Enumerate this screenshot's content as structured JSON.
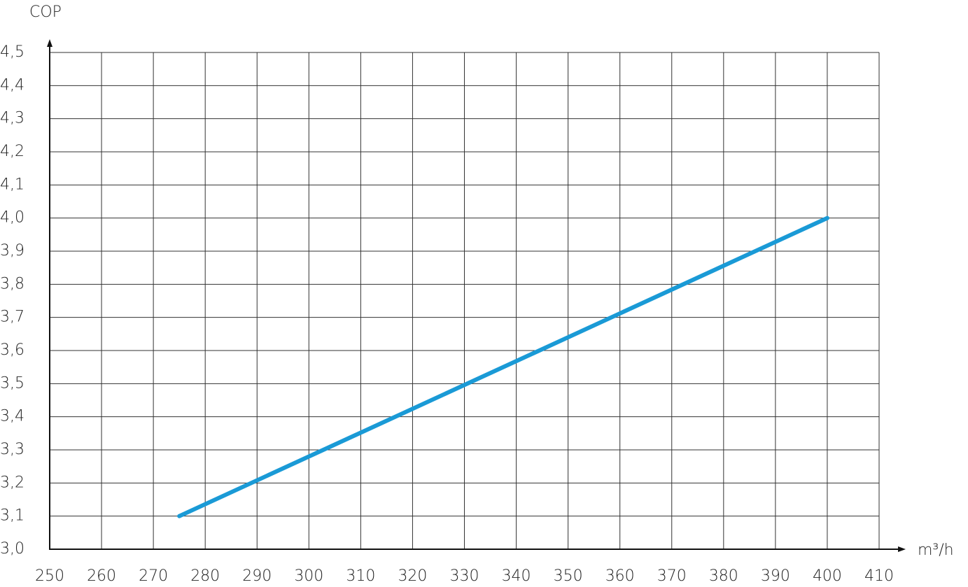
{
  "chart_data": {
    "type": "line",
    "y_label": "COP",
    "x_label": "m³/h",
    "x": [
      275,
      400
    ],
    "values": [
      3.1,
      4.0
    ],
    "color": "#1a9ad6",
    "xlim": [
      250,
      410
    ],
    "xticks": [
      250,
      260,
      270,
      280,
      290,
      300,
      310,
      320,
      330,
      340,
      350,
      360,
      370,
      380,
      390,
      400,
      410
    ],
    "ylim": [
      3.0,
      4.5
    ],
    "yticks": [
      {
        "value": 3.0,
        "label": "3,0"
      },
      {
        "value": 3.1,
        "label": "3,1"
      },
      {
        "value": 3.2,
        "label": "3,2"
      },
      {
        "value": 3.3,
        "label": "3,3"
      },
      {
        "value": 3.4,
        "label": "3,4"
      },
      {
        "value": 3.5,
        "label": "3,5"
      },
      {
        "value": 3.6,
        "label": "3,6"
      },
      {
        "value": 3.7,
        "label": "3,7"
      },
      {
        "value": 3.8,
        "label": "3,8"
      },
      {
        "value": 3.9,
        "label": "3,9"
      },
      {
        "value": 4.0,
        "label": "4,0"
      },
      {
        "value": 4.1,
        "label": "4,1"
      },
      {
        "value": 4.2,
        "label": "4,2"
      },
      {
        "value": 4.3,
        "label": "4,3"
      },
      {
        "value": 4.4,
        "label": "4,4"
      },
      {
        "value": 4.5,
        "label": "4,5"
      }
    ],
    "grid": true
  }
}
